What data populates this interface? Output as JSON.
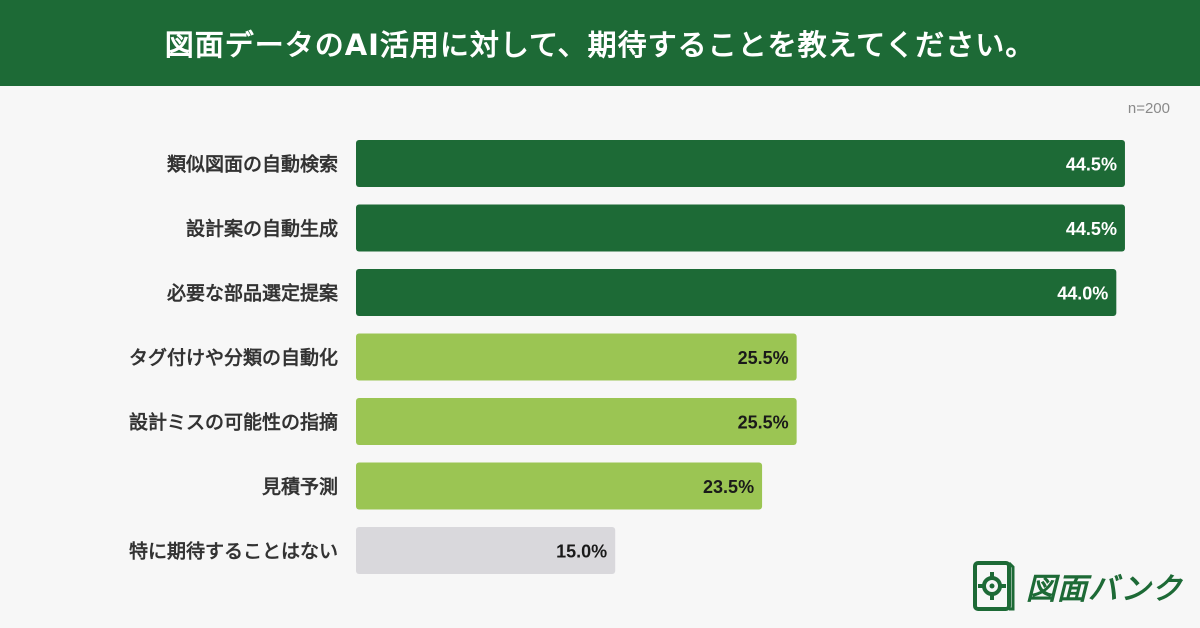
{
  "header": {
    "title": "図面データのAI活用に対して、期待することを教えてください。"
  },
  "sample_size": "n=200",
  "brand": {
    "name": "図面バンク",
    "icon": "blueprint-gear-icon"
  },
  "colors": {
    "header_bg": "#1d6a36",
    "dark_green": "#1d6a36",
    "light_green": "#9bc553",
    "gray": "#d9d8dc"
  },
  "chart_data": {
    "type": "bar",
    "orientation": "horizontal",
    "title": "図面データのAI活用に対して、期待することを教えてください。",
    "categories": [
      "類似図面の自動検索",
      "設計案の自動生成",
      "必要な部品選定提案",
      "タグ付けや分類の自動化",
      "設計ミスの可能性の指摘",
      "見積予測",
      "特に期待することはない"
    ],
    "values": [
      44.5,
      44.5,
      44.0,
      25.5,
      25.5,
      23.5,
      15.0
    ],
    "labels": [
      "44.5%",
      "44.5%",
      "44.0%",
      "25.5%",
      "25.5%",
      "23.5%",
      "15.0%"
    ],
    "bar_colors": [
      "#1d6a36",
      "#1d6a36",
      "#1d6a36",
      "#9bc553",
      "#9bc553",
      "#9bc553",
      "#d9d8dc"
    ],
    "label_colors": [
      "#ffffff",
      "#ffffff",
      "#ffffff",
      "#1a1a1a",
      "#1a1a1a",
      "#1a1a1a",
      "#1a1a1a"
    ],
    "unit": "%",
    "grid": false,
    "legend": "none"
  }
}
